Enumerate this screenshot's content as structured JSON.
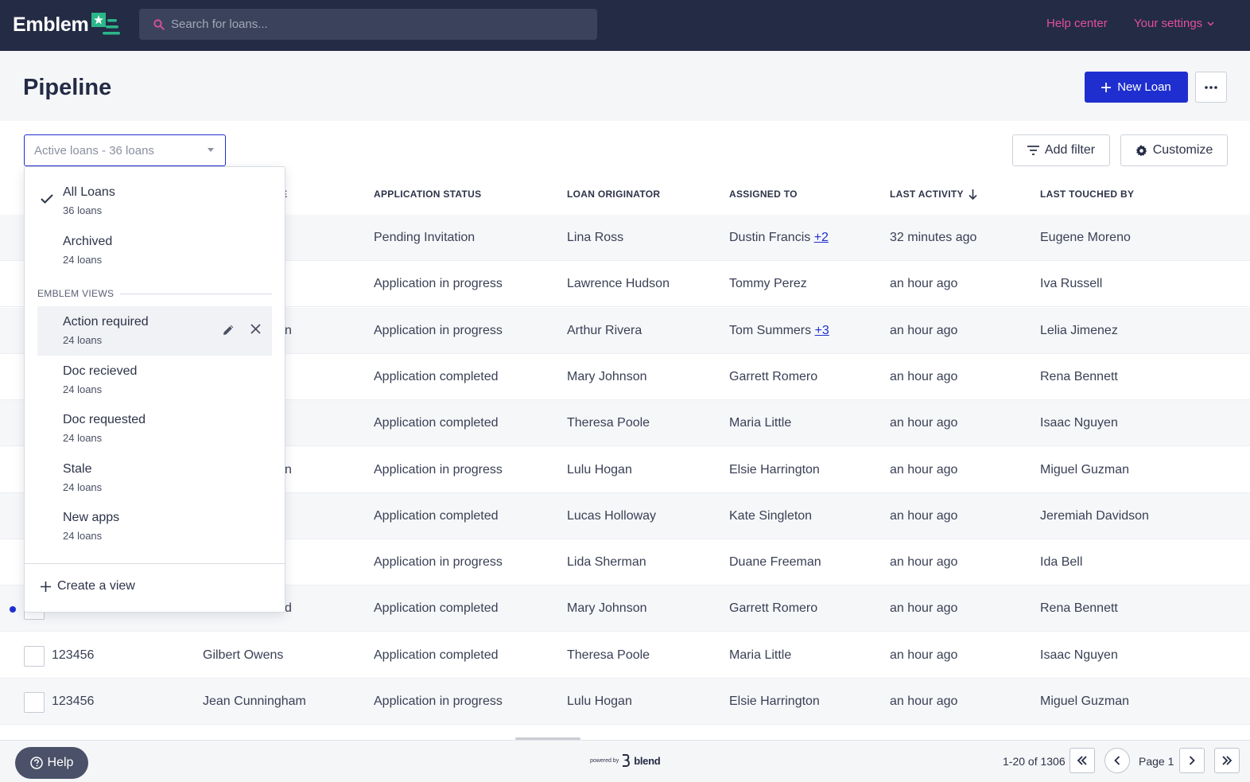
{
  "brand": {
    "name": "Emblem"
  },
  "search": {
    "placeholder": "Search for loans..."
  },
  "nav": {
    "help": "Help center",
    "settings": "Your settings"
  },
  "page": {
    "title": "Pipeline",
    "new_loan": "New Loan"
  },
  "toolbar": {
    "view_select": "Active loans - 36 loans",
    "add_filter": "Add filter",
    "customize": "Customize"
  },
  "table": {
    "headers": {
      "name_partial": "E",
      "status": "APPLICATION STATUS",
      "originator": "LOAN ORIGINATOR",
      "assigned": "ASSIGNED TO",
      "activity": "LAST ACTIVITY",
      "touched": "LAST TOUCHED BY"
    },
    "rows": [
      {
        "id": "",
        "name": "",
        "status": "Pending Invitation",
        "originator": "Lina Ross",
        "assigned": "Dustin Francis",
        "assigned_more": "+2",
        "activity": "32 minutes ago",
        "touched": "Eugene Moreno"
      },
      {
        "id": "",
        "name": "",
        "status": "Application in progress",
        "originator": "Lawrence Hudson",
        "assigned": "Tommy Perez",
        "assigned_more": "",
        "activity": "an hour ago",
        "touched": "Iva Russell"
      },
      {
        "id": "",
        "name": "n",
        "status": "Application in progress",
        "originator": "Arthur Rivera",
        "assigned": "Tom Summers",
        "assigned_more": "+3",
        "activity": "an hour ago",
        "touched": "Lelia Jimenez"
      },
      {
        "id": "",
        "name": "",
        "status": "Application completed",
        "originator": "Mary Johnson",
        "assigned": "Garrett Romero",
        "assigned_more": "",
        "activity": "an hour ago",
        "touched": "Rena Bennett"
      },
      {
        "id": "",
        "name": "",
        "status": "Application completed",
        "originator": "Theresa Poole",
        "assigned": "Maria Little",
        "assigned_more": "",
        "activity": "an hour ago",
        "touched": "Isaac Nguyen"
      },
      {
        "id": "",
        "name": "n",
        "status": "Application in progress",
        "originator": "Lulu Hogan",
        "assigned": "Elsie Harrington",
        "assigned_more": "",
        "activity": "an hour ago",
        "touched": "Miguel Guzman"
      },
      {
        "id": "",
        "name": "",
        "status": "Application completed",
        "originator": "Lucas Holloway",
        "assigned": "Kate Singleton",
        "assigned_more": "",
        "activity": "an hour ago",
        "touched": "Jeremiah Davidson"
      },
      {
        "id": "",
        "name": "",
        "status": "Application in progress",
        "originator": "Lida Sherman",
        "assigned": "Duane Freeman",
        "assigned_more": "",
        "activity": "an hour ago",
        "touched": "Ida Bell"
      },
      {
        "id": "",
        "name": "d",
        "status": "Application completed",
        "originator": "Mary Johnson",
        "assigned": "Garrett Romero",
        "assigned_more": "",
        "activity": "an hour ago",
        "touched": "Rena Bennett"
      },
      {
        "id": "123456",
        "name": "Gilbert Owens",
        "status": "Application completed",
        "originator": "Theresa Poole",
        "assigned": "Maria Little",
        "assigned_more": "",
        "activity": "an hour ago",
        "touched": "Isaac Nguyen"
      },
      {
        "id": "123456",
        "name": "Jean Cunningham",
        "status": "Application in progress",
        "originator": "Lulu Hogan",
        "assigned": "Elsie Harrington",
        "assigned_more": "",
        "activity": "an hour ago",
        "touched": "Miguel Guzman"
      }
    ]
  },
  "menu": {
    "items": [
      {
        "label": "All Loans",
        "count": "36 loans"
      },
      {
        "label": "Archived",
        "count": "24 loans"
      }
    ],
    "section": "EMBLEM VIEWS",
    "views": [
      {
        "label": "Action required",
        "count": "24 loans"
      },
      {
        "label": "Doc recieved",
        "count": "24 loans"
      },
      {
        "label": "Doc requested",
        "count": "24 loans"
      },
      {
        "label": "Stale",
        "count": "24 loans"
      },
      {
        "label": "New apps",
        "count": "24 loans"
      }
    ],
    "create": "Create a view"
  },
  "footer": {
    "help": "Help",
    "powered_by": "powered by",
    "powered_brand": "blend",
    "range": "1-20 of 1306",
    "page": "Page 1"
  },
  "colors": {
    "navbar": "#232b45",
    "accent": "#1f2fcf",
    "link_pink": "#e24f9e",
    "logo_green": "#2bb789"
  }
}
